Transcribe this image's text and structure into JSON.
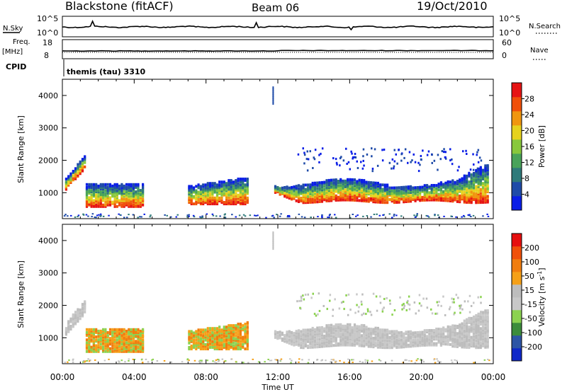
{
  "header": {
    "station": "Blackstone (fitACF)",
    "beam": "Beam 06",
    "date": "19/Oct/2010"
  },
  "top_panels": {
    "nsky_label": "N.Sky",
    "nsearch_label": "N.Search",
    "nsky_ticks": [
      "10^5",
      "10^0"
    ],
    "nsearch_ticks": [
      "10^5",
      "10^0"
    ],
    "freq_label": "Freq.",
    "freq_unit": "[MHz]",
    "freq_ticks": [
      "18",
      "8"
    ],
    "nave_label": "Nave",
    "nave_ticks": [
      "60",
      "0"
    ],
    "cpid_label": "CPID",
    "cpid_value": "themis (tau) 3310"
  },
  "colors": {
    "power": [
      "#0a1ee6",
      "#1f4ba8",
      "#2f7a7a",
      "#49a35a",
      "#88c83c",
      "#e6d21e",
      "#f0960f",
      "#f0500a",
      "#e61414"
    ],
    "velocity": [
      "#e60f0f",
      "#f0500a",
      "#f07d0f",
      "#f5a018",
      "#bdbdbd",
      "#c8c8c8",
      "#8cd250",
      "#3c8c3c",
      "#2d55a5",
      "#0f28c8"
    ]
  },
  "chart_data": [
    {
      "type": "heatmap",
      "name": "power",
      "ylabel": "Slant Range [km]",
      "ylim": [
        200,
        4500
      ],
      "yticks": [
        1000,
        2000,
        3000,
        4000
      ],
      "x": [
        "00:00",
        "04:00",
        "08:00",
        "12:00",
        "16:00",
        "20:00",
        "00:00"
      ],
      "colorbar_label": "Power [dB]",
      "colorbar_ticks": [
        "28",
        "24",
        "20",
        "16",
        "12",
        "8",
        "4"
      ],
      "colorbar_range": [
        0,
        32
      ]
    },
    {
      "type": "heatmap",
      "name": "velocity",
      "ylabel": "Slant Range [km]",
      "ylim": [
        200,
        4500
      ],
      "yticks": [
        1000,
        2000,
        3000,
        4000
      ],
      "x": [
        "00:00",
        "04:00",
        "08:00",
        "12:00",
        "16:00",
        "20:00",
        "00:00"
      ],
      "xlabel": "Time UT",
      "colorbar_label": "Velocity [m s^-1]",
      "colorbar_ticks": [
        "200",
        "100",
        "50",
        "15",
        "-15",
        "-50",
        "-100",
        "-200"
      ]
    }
  ]
}
